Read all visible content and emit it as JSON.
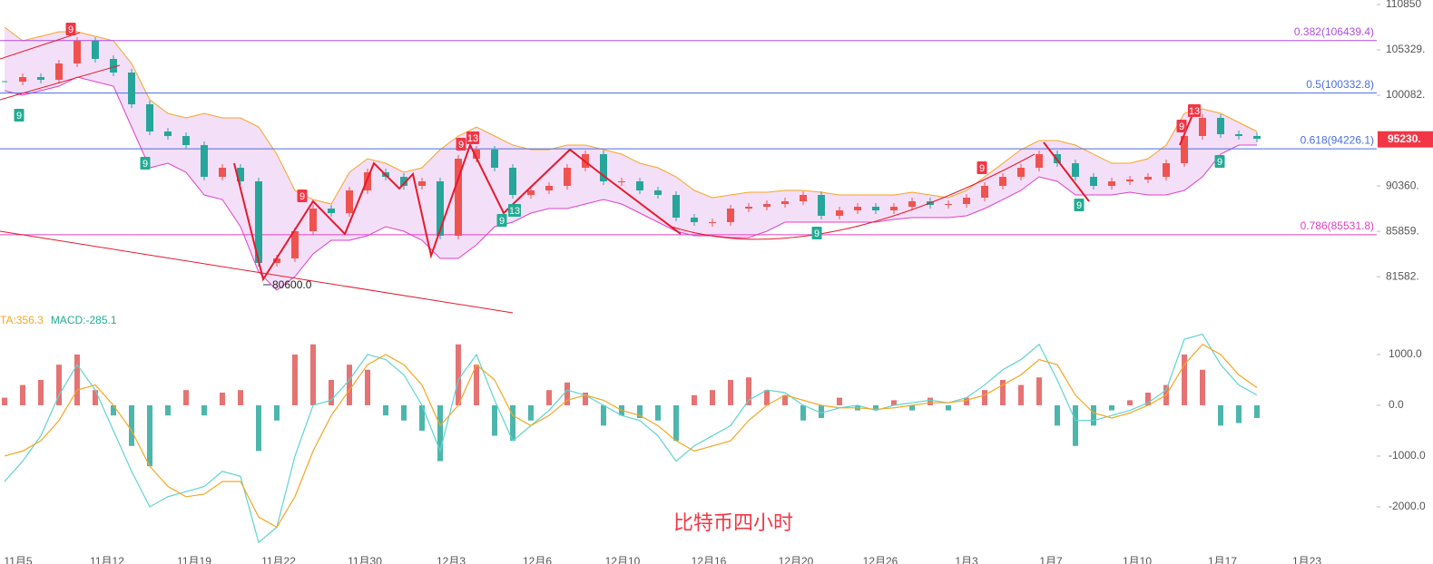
{
  "chart_data": [
    {
      "type": "candlestick",
      "log_scale": true,
      "ylim": [
        78730,
        111418
      ],
      "yticks": [
        {
          "value": 110850,
          "label": "110850"
        },
        {
          "value": 105329,
          "label": "105329."
        },
        {
          "value": 100082,
          "label": "100082."
        },
        {
          "value": 90360,
          "label": "90360."
        },
        {
          "value": 85859,
          "label": "85859."
        },
        {
          "value": 81582,
          "label": "81582."
        }
      ],
      "x_labels": [
        "11月5",
        "11月12",
        "11月19",
        "11月22",
        "11月30",
        "12月3",
        "12月6",
        "12月10",
        "12月16",
        "12月20",
        "12月26",
        "1月3",
        "1月7",
        "1月10",
        "1月17",
        "1月23"
      ],
      "up_color": "#ef5350",
      "down_color": "#26a69a",
      "close": [
        101632,
        102153,
        101839,
        103730,
        106412,
        104261,
        102676,
        99070,
        96080,
        95591,
        94619,
        91296,
        92234,
        90832,
        82855,
        83279,
        85871,
        88091,
        87643,
        89909,
        91764,
        91296,
        90370,
        90832,
        85433,
        93180,
        94137,
        92234,
        89451,
        89909,
        90370,
        92234,
        93657,
        90832,
        90832,
        89909,
        89451,
        87197,
        86752,
        86752,
        88091,
        88272,
        88543,
        88815,
        89451,
        87375,
        87912,
        88272,
        87912,
        88272,
        88815,
        88453,
        88543,
        89178,
        90370,
        91296,
        92234,
        93657,
        92705,
        91296,
        90370,
        90832,
        91017,
        91296,
        92705,
        95591,
        97563,
        95786,
        95591,
        95298
      ],
      "band": {
        "upper_color": "#f5a623",
        "lower_color": "#e040c8",
        "fill": "#f0d4f5",
        "upper": [
          108055,
          106412,
          106957,
          107505,
          107505,
          106957,
          106412,
          103730,
          99577,
          98063,
          97563,
          98063,
          97563,
          97563,
          96572,
          93657,
          89909,
          88994,
          88543,
          91764,
          93180,
          92705,
          91764,
          92234,
          94137,
          95591,
          96572,
          95591,
          94619,
          94137,
          94137,
          94619,
          94619,
          94137,
          93657,
          92705,
          92234,
          91296,
          89909,
          89178,
          89451,
          89725,
          89725,
          89909,
          89909,
          89725,
          89451,
          89451,
          89451,
          89451,
          89725,
          89451,
          89178,
          89909,
          91296,
          92705,
          94137,
          95104,
          95104,
          94619,
          93657,
          92705,
          92705,
          93180,
          94619,
          98063,
          98565,
          98063,
          97067,
          96080
        ],
        "lower": [
          100599,
          100087,
          100599,
          101114,
          102153,
          101632,
          101114,
          96572,
          92234,
          92705,
          91764,
          89451,
          88994,
          86310,
          82013,
          80354,
          81595,
          83705,
          84997,
          84997,
          85433,
          86310,
          85871,
          84997,
          83279,
          83279,
          84564,
          86310,
          86752,
          87643,
          88091,
          88091,
          88543,
          88994,
          88543,
          87643,
          86752,
          85871,
          85433,
          85433,
          85259,
          85259,
          85871,
          86752,
          86752,
          86752,
          86752,
          86752,
          86752,
          87017,
          87197,
          87197,
          87197,
          87375,
          88091,
          88994,
          89909,
          91296,
          90832,
          89451,
          89451,
          89451,
          89725,
          89451,
          89451,
          89909,
          91296,
          93657,
          94619,
          94619
        ]
      },
      "fib_levels": [
        {
          "value": 106439.4,
          "label": "0.382(106439.4)",
          "color": "#b04ce0"
        },
        {
          "value": 100332.8,
          "label": "0.5(100332.8)",
          "color": "#4a6ee0"
        },
        {
          "value": 94226.1,
          "label": "0.618(94226.1)",
          "color": "#4a6ee0"
        },
        {
          "value": 85531.8,
          "label": "0.786(85531.8)",
          "color": "#e040c0"
        }
      ],
      "last_price": {
        "value": 95230,
        "label": "95230.",
        "color": "#f23645"
      },
      "low_mark": {
        "value": 80600,
        "label": "80600.0"
      },
      "signals": [
        {
          "text": "9",
          "color": "#f23645"
        },
        {
          "text": "9",
          "color": "#f23645"
        },
        {
          "text": "9",
          "color": "#f23645"
        },
        {
          "text": "13",
          "color": "#f23645"
        },
        {
          "text": "9",
          "color": "#f23645"
        },
        {
          "text": "9",
          "color": "#f23645"
        },
        {
          "text": "13",
          "color": "#f23645"
        },
        {
          "text": "9",
          "color": "#22ab94"
        },
        {
          "text": "9",
          "color": "#22ab94"
        },
        {
          "text": "9",
          "color": "#22ab94"
        },
        {
          "text": "13",
          "color": "#22ab94"
        },
        {
          "text": "9",
          "color": "#22ab94"
        },
        {
          "text": "9",
          "color": "#22ab94"
        },
        {
          "text": "9",
          "color": "#22ab94"
        }
      ]
    },
    {
      "type": "macd",
      "ylim": [
        -2911,
        1821
      ],
      "yticks": [
        {
          "value": 1000,
          "label": "1000.0"
        },
        {
          "value": 0,
          "label": "0.0"
        },
        {
          "value": -1000,
          "label": "-1000.0"
        },
        {
          "value": -2000,
          "label": "-2000.0"
        }
      ],
      "labels": [
        {
          "text": "TA:356.3",
          "color": "#f5a623"
        },
        {
          "text": "MACD:-285.1",
          "color": "#22ab94"
        }
      ],
      "pos_color": "#e57373",
      "neg_color": "#4db6ac",
      "dif_color": "#5fd3d0",
      "dea_color": "#f5a623",
      "histogram": [
        150,
        400,
        500,
        800,
        1000,
        300,
        -200,
        -800,
        -1200,
        -200,
        300,
        -200,
        250,
        300,
        -900,
        -300,
        1000,
        1200,
        500,
        800,
        700,
        -200,
        -300,
        -500,
        -1100,
        1200,
        800,
        -600,
        -700,
        -300,
        300,
        450,
        250,
        -400,
        -200,
        -250,
        -300,
        -700,
        200,
        300,
        500,
        550,
        300,
        200,
        -300,
        -250,
        150,
        -100,
        -80,
        100,
        -100,
        150,
        -100,
        150,
        300,
        500,
        400,
        550,
        -400,
        -800,
        -400,
        -100,
        100,
        250,
        400,
        1000,
        700,
        -400,
        -350,
        -250
      ],
      "dif": [
        -1500,
        -1100,
        -600,
        200,
        800,
        300,
        -500,
        -1300,
        -2000,
        -1800,
        -1700,
        -1600,
        -1300,
        -1400,
        -2700,
        -2400,
        -1000,
        0,
        100,
        500,
        1000,
        900,
        600,
        0,
        -900,
        500,
        1000,
        100,
        -700,
        -400,
        -100,
        300,
        200,
        0,
        -200,
        -300,
        -600,
        -1100,
        -800,
        -600,
        -400,
        100,
        300,
        250,
        0,
        -150,
        -50,
        0,
        -100,
        0,
        50,
        100,
        50,
        150,
        400,
        700,
        900,
        1200,
        500,
        -300,
        -300,
        -200,
        -100,
        50,
        300,
        1300,
        1400,
        800,
        400,
        200
      ],
      "dea": [
        -1000,
        -900,
        -700,
        -300,
        300,
        400,
        0,
        -500,
        -1200,
        -1600,
        -1800,
        -1750,
        -1500,
        -1500,
        -2200,
        -2400,
        -1800,
        -900,
        -200,
        300,
        800,
        1000,
        800,
        400,
        -400,
        0,
        800,
        500,
        -200,
        -400,
        -200,
        100,
        200,
        100,
        -100,
        -200,
        -400,
        -700,
        -900,
        -800,
        -700,
        -300,
        0,
        200,
        100,
        0,
        -50,
        -50,
        -80,
        -50,
        0,
        50,
        50,
        100,
        200,
        400,
        600,
        900,
        800,
        200,
        -150,
        -250,
        -150,
        0,
        200,
        800,
        1200,
        1000,
        600,
        350
      ]
    }
  ],
  "watermark": {
    "text": "比特币四小时",
    "color": "#f23645"
  }
}
